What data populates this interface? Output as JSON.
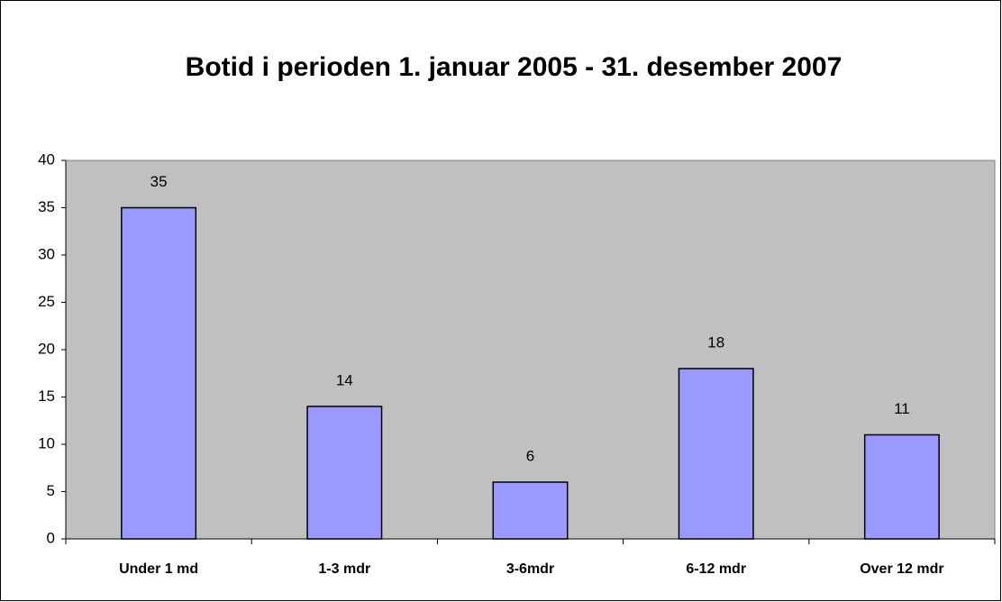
{
  "chart_data": {
    "type": "bar",
    "title": "Botid i perioden 1. januar 2005 - 31. desember 2007",
    "categories": [
      "Under 1 md",
      "1-3 mdr",
      "3-6mdr",
      "6-12 mdr",
      "Over 12 mdr"
    ],
    "values": [
      35,
      14,
      6,
      18,
      11
    ],
    "color": "#9999ff",
    "ylim": [
      0,
      40
    ],
    "yticks": [
      0,
      5,
      10,
      15,
      20,
      25,
      30,
      35,
      40
    ],
    "grid": false
  }
}
